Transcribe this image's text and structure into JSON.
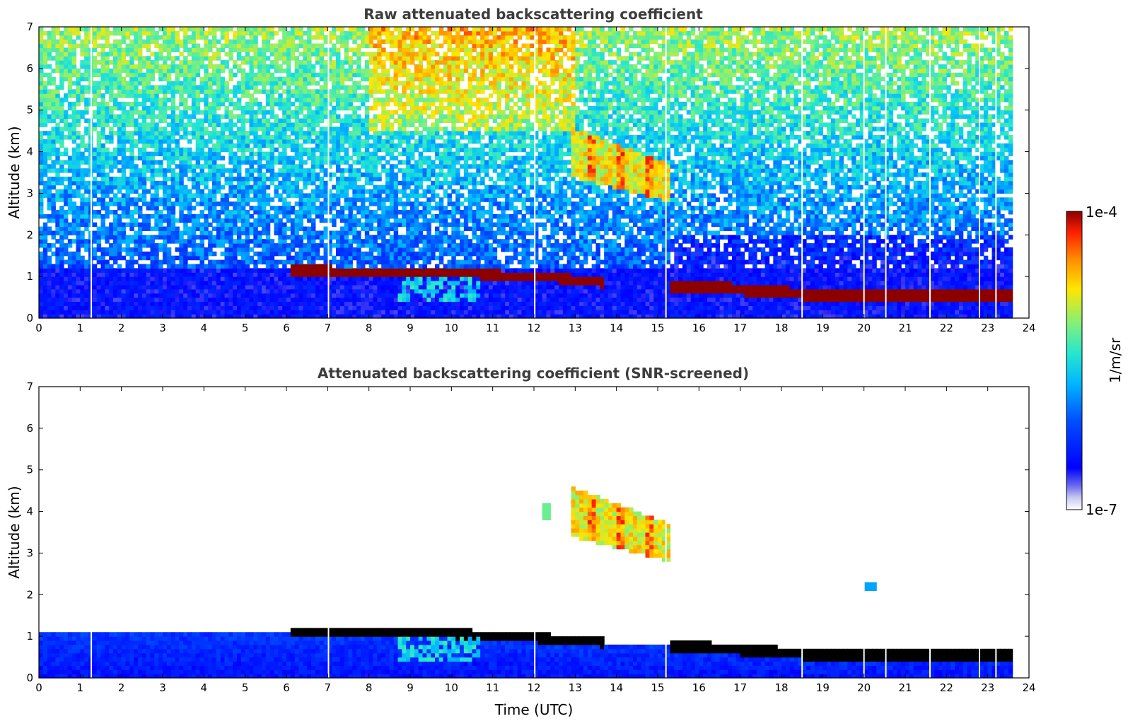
{
  "chart_data": [
    {
      "type": "heatmap",
      "title": "Raw attenuated backscattering coefficient",
      "xlabel": "",
      "ylabel": "Altitude (km)",
      "xlim": [
        0,
        24
      ],
      "ylim": [
        0,
        7
      ],
      "x_ticks": [
        "0",
        "1",
        "2",
        "3",
        "4",
        "5",
        "6",
        "7",
        "8",
        "9",
        "10",
        "11",
        "12",
        "13",
        "14",
        "15",
        "16",
        "17",
        "18",
        "19",
        "20",
        "21",
        "22",
        "23",
        "24"
      ],
      "y_ticks": [
        "0",
        "1",
        "2",
        "3",
        "4",
        "5",
        "6",
        "7"
      ],
      "data_end_time": 23.6,
      "gaps": [
        1.27,
        7.02,
        12.02,
        15.2,
        18.5,
        20.0,
        20.53,
        21.6,
        22.8,
        23.2
      ],
      "features": [
        {
          "kind": "background_noise_low",
          "x": [
            0,
            23.6
          ],
          "y": [
            0,
            1.2
          ],
          "level": 0.1
        },
        {
          "kind": "background_noise_high",
          "x": [
            0,
            23.6
          ],
          "y": [
            1.2,
            7
          ],
          "level": 0.5
        },
        {
          "kind": "cloud_layer",
          "points": [
            [
              6.1,
              1.15
            ],
            [
              9,
              1.12
            ],
            [
              11,
              1.05
            ],
            [
              12.8,
              0.95
            ],
            [
              13.7,
              0.85
            ]
          ],
          "thickness": 0.12,
          "level": 1.0
        },
        {
          "kind": "cloud_layer",
          "points": [
            [
              15.3,
              0.78
            ],
            [
              17,
              0.7
            ],
            [
              19,
              0.55
            ],
            [
              21,
              0.55
            ],
            [
              22,
              0.55
            ],
            [
              23.6,
              0.58
            ]
          ],
          "thickness": 0.18,
          "level": 1.0
        },
        {
          "kind": "midlevel_cloud",
          "x": [
            12.9,
            15.3
          ],
          "y": [
            2.8,
            4.6
          ],
          "level": 0.7
        },
        {
          "kind": "virga",
          "x": [
            8.7,
            10.7
          ],
          "y": [
            0.4,
            1.0
          ],
          "level": 0.45
        }
      ]
    },
    {
      "type": "heatmap",
      "title": "Attenuated backscattering coefficient (SNR-screened)",
      "xlabel": "Time (UTC)",
      "ylabel": "Altitude (km)",
      "xlim": [
        0,
        24
      ],
      "ylim": [
        0,
        7
      ],
      "x_ticks": [
        "0",
        "1",
        "2",
        "3",
        "4",
        "5",
        "6",
        "7",
        "8",
        "9",
        "10",
        "11",
        "12",
        "13",
        "14",
        "15",
        "16",
        "17",
        "18",
        "19",
        "20",
        "21",
        "22",
        "23",
        "24"
      ],
      "y_ticks": [
        "0",
        "1",
        "2",
        "3",
        "4",
        "5",
        "6",
        "7"
      ],
      "data_end_time": 23.6,
      "gaps": [
        1.27,
        7.02,
        12.02,
        15.2,
        18.5,
        20.0,
        20.53,
        21.6,
        22.8,
        23.2
      ],
      "features": [
        {
          "kind": "boundary_layer",
          "x": [
            0,
            23.6
          ],
          "top": [
            [
              0,
              1.1
            ],
            [
              6,
              1.15
            ],
            [
              11,
              1.05
            ],
            [
              13,
              0.85
            ],
            [
              15.3,
              0.85
            ],
            [
              17,
              0.72
            ],
            [
              19,
              0.6
            ],
            [
              23.6,
              0.7
            ]
          ],
          "level": 0.12
        },
        {
          "kind": "cloud_layer_saturated",
          "points": [
            [
              6.1,
              1.12
            ],
            [
              9,
              1.1
            ],
            [
              11,
              1.02
            ],
            [
              12.8,
              0.92
            ],
            [
              13.7,
              0.85
            ]
          ],
          "thickness": 0.12
        },
        {
          "kind": "cloud_layer_saturated",
          "points": [
            [
              15.3,
              0.78
            ],
            [
              17,
              0.68
            ],
            [
              19,
              0.55
            ],
            [
              21,
              0.55
            ],
            [
              23.6,
              0.58
            ]
          ],
          "thickness": 0.16
        },
        {
          "kind": "midlevel_cloud",
          "x": [
            12.9,
            15.3
          ],
          "y": [
            2.8,
            4.6
          ],
          "level": 0.7
        },
        {
          "kind": "small_patch",
          "x": [
            12.2,
            12.4
          ],
          "y": [
            3.8,
            4.2
          ],
          "level": 0.6
        },
        {
          "kind": "small_patch",
          "x": [
            20.05,
            20.3
          ],
          "y": [
            2.1,
            2.25
          ],
          "level": 0.4
        },
        {
          "kind": "virga",
          "x": [
            8.7,
            10.7
          ],
          "y": [
            0.4,
            1.0
          ],
          "level": 0.45
        }
      ]
    }
  ],
  "colorbar": {
    "max_label": "1e-4",
    "min_label": "1e-7",
    "label": "1/m/sr",
    "colormap": "jet"
  }
}
